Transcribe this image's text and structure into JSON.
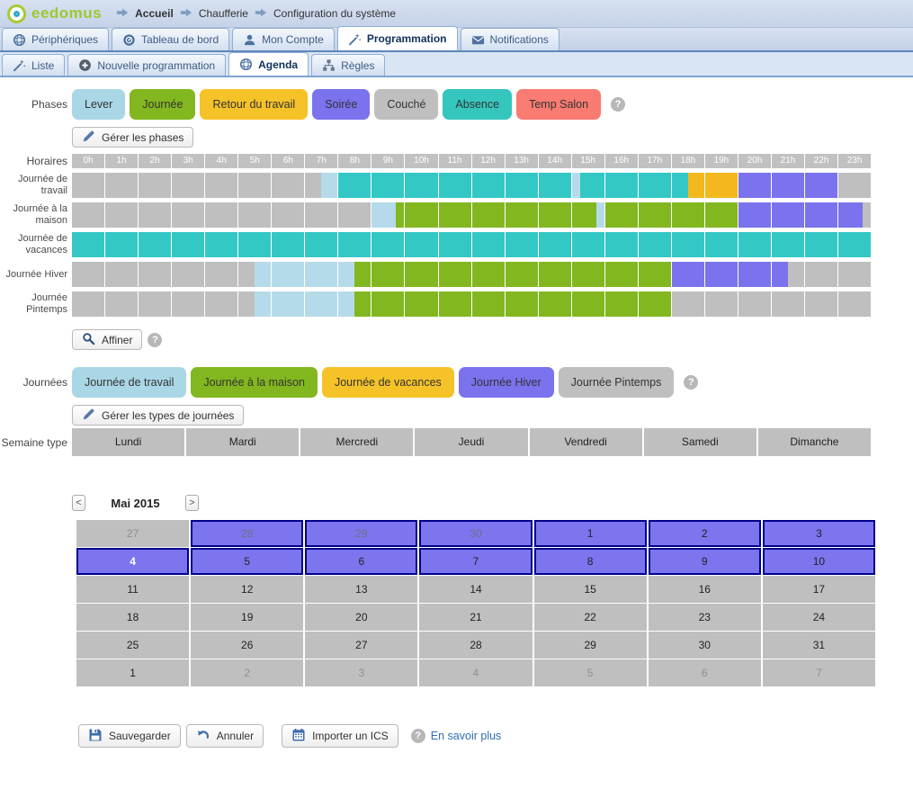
{
  "colors": {
    "teal": "#33C8C5",
    "green": "#82B71F",
    "yellow": "#F2B81E",
    "purple": "#7B72EE",
    "lightblue": "#B5DBEA",
    "gray": "#BFBFBF",
    "calendar_selected": "#7C75EE",
    "calendar_border": "#00008B",
    "link_blue": "#2E6DB4"
  },
  "header": {
    "logo_text": "eedomus",
    "breadcrumb": [
      "Accueil",
      "Chaufferie",
      "Configuration du système"
    ]
  },
  "main_tabs": [
    {
      "label": "Périphériques",
      "icon": "sphere-icon",
      "active": false
    },
    {
      "label": "Tableau de bord",
      "icon": "gauge-icon",
      "active": false
    },
    {
      "label": "Mon Compte",
      "icon": "user-icon",
      "active": false
    },
    {
      "label": "Programmation",
      "icon": "wand-icon",
      "active": true
    },
    {
      "label": "Notifications",
      "icon": "envelope-icon",
      "active": false
    }
  ],
  "sub_tabs": [
    {
      "label": "Liste",
      "icon": "wand-icon",
      "active": false
    },
    {
      "label": "Nouvelle programmation",
      "icon": "plus-icon",
      "active": false
    },
    {
      "label": "Agenda",
      "icon": "sphere-icon",
      "active": true
    },
    {
      "label": "Règles",
      "icon": "hierarchy-icon",
      "active": false
    }
  ],
  "phases": {
    "section_label": "Phases",
    "items": [
      {
        "label": "Lever",
        "color": "#A9D7E6"
      },
      {
        "label": "Journée",
        "color": "#82B71F"
      },
      {
        "label": "Retour du travail",
        "color": "#F5C228"
      },
      {
        "label": "Soirée",
        "color": "#7B72EE"
      },
      {
        "label": "Couché",
        "color": "#BFBFBF"
      },
      {
        "label": "Absence",
        "color": "#35C6BE"
      },
      {
        "label": "Temp Salon",
        "color": "#F97B71"
      }
    ],
    "manage_label": "Gérer les phases"
  },
  "horaires": {
    "section_label": "Horaires",
    "hours": [
      "0h",
      "1h",
      "2h",
      "3h",
      "4h",
      "5h",
      "6h",
      "7h",
      "8h",
      "9h",
      "10h",
      "11h",
      "12h",
      "13h",
      "14h",
      "15h",
      "16h",
      "17h",
      "18h",
      "19h",
      "20h",
      "21h",
      "22h",
      "23h"
    ],
    "rows": [
      {
        "label": "Journée de travail",
        "segments": [
          [
            0,
            7.5,
            "gray"
          ],
          [
            7.5,
            8,
            "lightblue"
          ],
          [
            8,
            15,
            "teal"
          ],
          [
            15,
            15.25,
            "lightblue"
          ],
          [
            15.25,
            18.5,
            "teal"
          ],
          [
            18.5,
            20,
            "yellow"
          ],
          [
            20,
            23,
            "purple"
          ],
          [
            23,
            24,
            "gray"
          ]
        ]
      },
      {
        "label": "Journée à la maison",
        "segments": [
          [
            0,
            9,
            "gray"
          ],
          [
            9,
            9.75,
            "lightblue"
          ],
          [
            9.75,
            15.75,
            "green"
          ],
          [
            15.75,
            16,
            "lightblue"
          ],
          [
            16,
            20,
            "green"
          ],
          [
            20,
            23.75,
            "purple"
          ],
          [
            23.75,
            24,
            "gray"
          ]
        ]
      },
      {
        "label": "Journée de vacances",
        "segments": [
          [
            0,
            24,
            "teal"
          ]
        ]
      },
      {
        "label": "Journée Hiver",
        "segments": [
          [
            0,
            5.5,
            "gray"
          ],
          [
            5.5,
            8.5,
            "lightblue"
          ],
          [
            8.5,
            18,
            "green"
          ],
          [
            18,
            21.5,
            "purple"
          ],
          [
            21.5,
            24,
            "gray"
          ]
        ]
      },
      {
        "label": "Journée Pintemps",
        "segments": [
          [
            0,
            5.5,
            "gray"
          ],
          [
            5.5,
            8.5,
            "lightblue"
          ],
          [
            8.5,
            18,
            "green"
          ],
          [
            18,
            24,
            "gray"
          ]
        ]
      }
    ]
  },
  "affiner_label": "Affiner",
  "journees": {
    "section_label": "Journées",
    "items": [
      {
        "label": "Journée de travail",
        "color": "#A9D7E6"
      },
      {
        "label": "Journée à la maison",
        "color": "#82B71F"
      },
      {
        "label": "Journée de vacances",
        "color": "#F5C228"
      },
      {
        "label": "Journée Hiver",
        "color": "#7B72EE"
      },
      {
        "label": "Journée Pintemps",
        "color": "#BFBFBF"
      }
    ],
    "manage_label": "Gérer les types de journées"
  },
  "semaine": {
    "section_label": "Semaine type",
    "days": [
      "Lundi",
      "Mardi",
      "Mercredi",
      "Jeudi",
      "Vendredi",
      "Samedi",
      "Dimanche"
    ]
  },
  "calendar": {
    "prev_label": "<",
    "next_label": ">",
    "month_label": "Mai 2015",
    "weeks": [
      [
        {
          "d": "27",
          "s": "out"
        },
        {
          "d": "28",
          "s": "sel-out"
        },
        {
          "d": "29",
          "s": "sel-out"
        },
        {
          "d": "30",
          "s": "sel-out"
        },
        {
          "d": "1",
          "s": "sel"
        },
        {
          "d": "2",
          "s": "sel"
        },
        {
          "d": "3",
          "s": "sel"
        }
      ],
      [
        {
          "d": "4",
          "s": "today"
        },
        {
          "d": "5",
          "s": "sel"
        },
        {
          "d": "6",
          "s": "sel"
        },
        {
          "d": "7",
          "s": "sel"
        },
        {
          "d": "8",
          "s": "sel"
        },
        {
          "d": "9",
          "s": "sel"
        },
        {
          "d": "10",
          "s": "sel"
        }
      ],
      [
        {
          "d": "11",
          "s": "norm"
        },
        {
          "d": "12",
          "s": "norm"
        },
        {
          "d": "13",
          "s": "norm"
        },
        {
          "d": "14",
          "s": "norm"
        },
        {
          "d": "15",
          "s": "norm"
        },
        {
          "d": "16",
          "s": "norm"
        },
        {
          "d": "17",
          "s": "norm"
        }
      ],
      [
        {
          "d": "18",
          "s": "norm"
        },
        {
          "d": "19",
          "s": "norm"
        },
        {
          "d": "20",
          "s": "norm"
        },
        {
          "d": "21",
          "s": "norm"
        },
        {
          "d": "22",
          "s": "norm"
        },
        {
          "d": "23",
          "s": "norm"
        },
        {
          "d": "24",
          "s": "norm"
        }
      ],
      [
        {
          "d": "25",
          "s": "norm"
        },
        {
          "d": "26",
          "s": "norm"
        },
        {
          "d": "27",
          "s": "norm"
        },
        {
          "d": "28",
          "s": "norm"
        },
        {
          "d": "29",
          "s": "norm"
        },
        {
          "d": "30",
          "s": "norm"
        },
        {
          "d": "31",
          "s": "norm"
        }
      ],
      [
        {
          "d": "1",
          "s": "norm"
        },
        {
          "d": "2",
          "s": "out"
        },
        {
          "d": "3",
          "s": "out"
        },
        {
          "d": "4",
          "s": "out"
        },
        {
          "d": "5",
          "s": "out"
        },
        {
          "d": "6",
          "s": "out"
        },
        {
          "d": "7",
          "s": "out"
        }
      ]
    ]
  },
  "footer": {
    "save_label": "Sauvegarder",
    "cancel_label": "Annuler",
    "import_label": "Importer un ICS",
    "more_label": "En savoir plus"
  }
}
